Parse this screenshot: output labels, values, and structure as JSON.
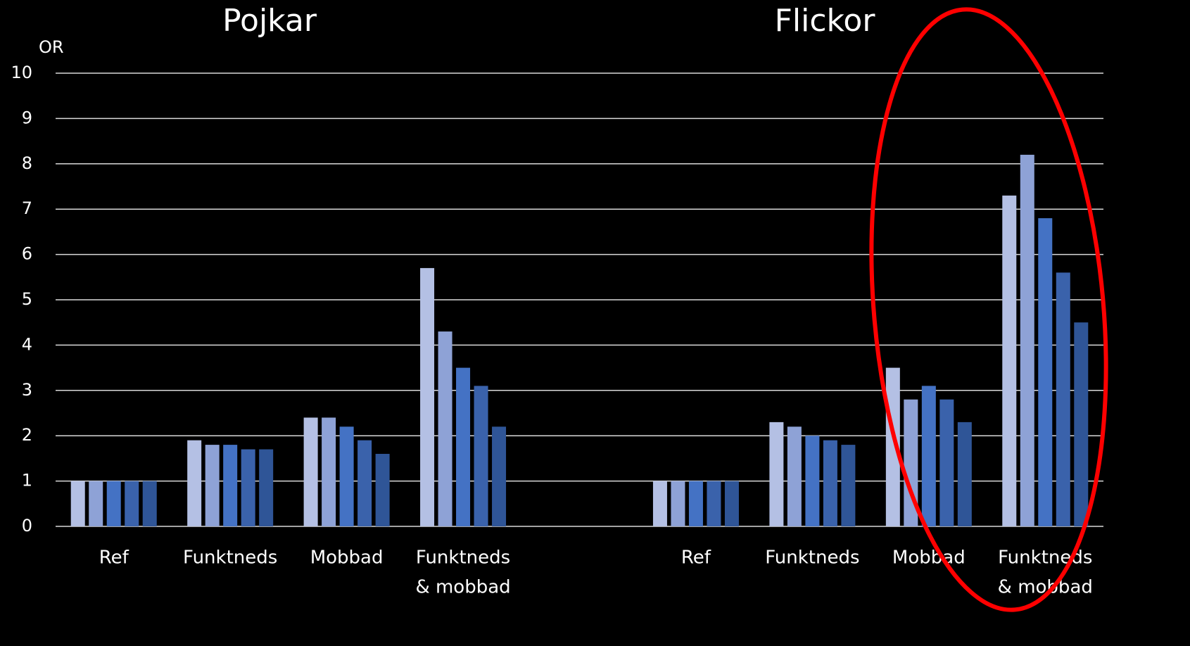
{
  "chart_data": {
    "type": "bar",
    "titles": [
      "Pojkar",
      "Flickor"
    ],
    "y_label": "OR",
    "categories": [
      "Ref",
      "Funktneds",
      "Mobbad",
      [
        "Funktneds",
        "& mobbad"
      ],
      null,
      "Ref",
      "Funktneds",
      "Mobbad",
      [
        "Funktneds",
        "& mobbad"
      ]
    ],
    "series": [
      {
        "color": "#b4c0e4",
        "values": [
          1,
          1.9,
          2.4,
          5.7,
          null,
          1,
          2.3,
          3.5,
          7.3
        ]
      },
      {
        "color": "#8ea2d6",
        "values": [
          1,
          1.8,
          2.4,
          4.3,
          null,
          1,
          2.2,
          2.8,
          8.2
        ]
      },
      {
        "color": "#4472c4",
        "values": [
          1,
          1.8,
          2.2,
          3.5,
          null,
          1,
          2.0,
          3.1,
          6.8
        ]
      },
      {
        "color": "#3a62ab",
        "values": [
          1,
          1.7,
          1.9,
          3.1,
          null,
          1,
          1.9,
          2.8,
          5.6
        ]
      },
      {
        "color": "#2f5597",
        "values": [
          1,
          1.7,
          1.6,
          2.2,
          null,
          1,
          1.8,
          2.3,
          4.5
        ]
      }
    ],
    "ylim": [
      0,
      10
    ],
    "yticks": [
      0,
      1,
      2,
      3,
      4,
      5,
      6,
      7,
      8,
      9,
      10
    ],
    "grid": true
  }
}
